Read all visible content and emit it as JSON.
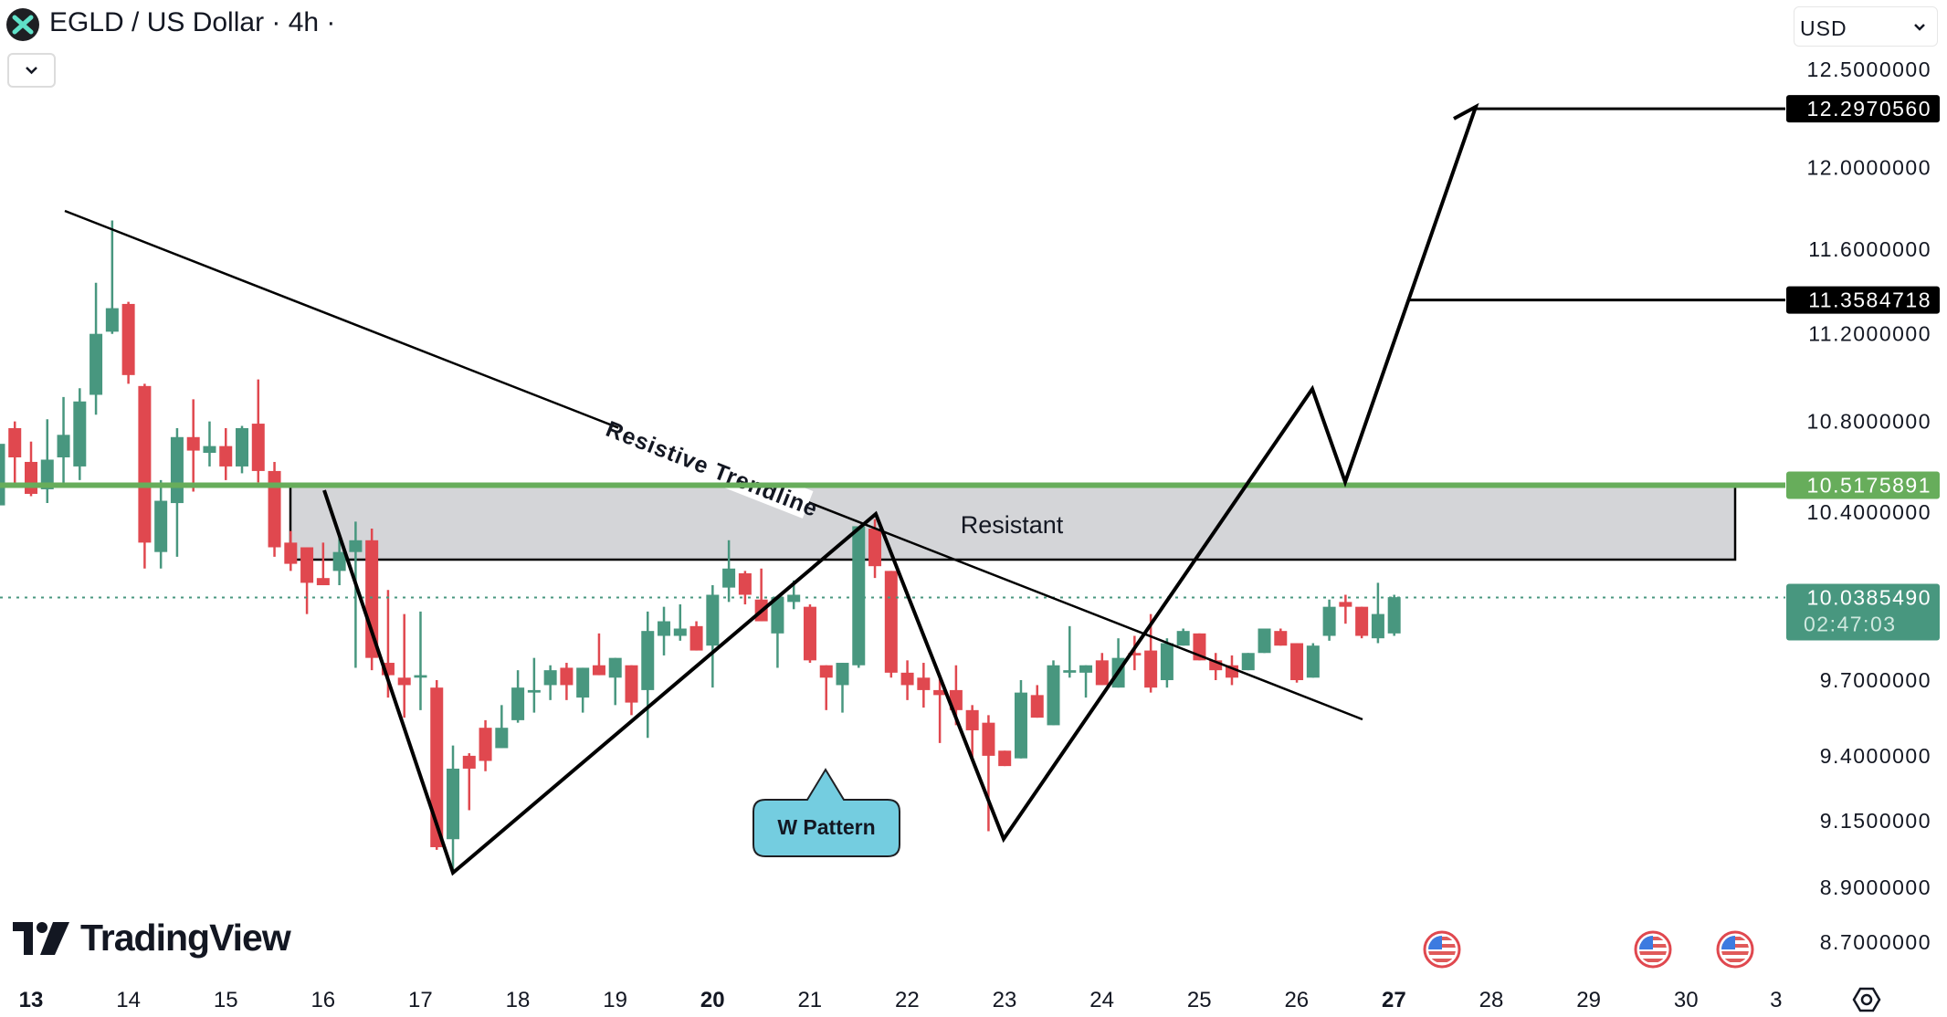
{
  "header": {
    "title": "EGLD / US Dollar · 4h ·",
    "symbol_icon": "multiversx-x-logo",
    "collapse_icon": "chevron-down-icon",
    "currency_select": "USD"
  },
  "branding": {
    "logo_text": "TradingView"
  },
  "annotations": {
    "trendline_label": "Resistive Trendline",
    "zone_label": "Resistant",
    "pattern_callout": "W Pattern"
  },
  "price_axis": {
    "ticks": [
      "12.5000000",
      "12.0000000",
      "11.6000000",
      "11.2000000",
      "10.8000000",
      "10.4000000",
      "9.7000000",
      "9.4000000",
      "9.1500000",
      "8.9000000",
      "8.7000000"
    ],
    "target_high": "12.2970560",
    "target_mid": "11.3584718",
    "resistance_level": "10.5175891",
    "last_price": "10.0385490",
    "countdown": "02:47:03"
  },
  "time_axis": {
    "labels": [
      "13",
      "14",
      "15",
      "16",
      "17",
      "18",
      "19",
      "20",
      "21",
      "22",
      "23",
      "24",
      "25",
      "26",
      "27",
      "28",
      "29",
      "30",
      "3"
    ],
    "bold": [
      "13",
      "20",
      "27"
    ]
  },
  "events": [
    "us-flag-icon",
    "us-flag-icon",
    "us-flag-icon"
  ],
  "colors": {
    "up": "#48977f",
    "down": "#e0484f",
    "resistance_line": "#67ad5b",
    "zone_fill": "#d4d5d8",
    "callout_fill": "#74cde0",
    "target_label_bg": "#000000",
    "last_price_bg": "#48977f"
  },
  "chart_data": {
    "type": "candlestick",
    "interval": "4h",
    "scale": "log",
    "ylim": [
      8.7,
      12.5
    ],
    "grid": false,
    "levels": {
      "resistance": 10.5175891,
      "target_1": 11.3584718,
      "target_2": 12.297056,
      "last": 10.038549
    },
    "ohlc": [
      [
        10.43,
        10.7,
        10.43,
        10.7
      ],
      [
        10.77,
        10.8,
        10.51,
        10.64
      ],
      [
        10.62,
        10.71,
        10.47,
        10.48
      ],
      [
        10.5,
        10.81,
        10.44,
        10.63
      ],
      [
        10.64,
        10.91,
        10.52,
        10.74
      ],
      [
        10.6,
        10.95,
        10.54,
        10.89
      ],
      [
        10.92,
        11.44,
        10.83,
        11.2
      ],
      [
        11.21,
        11.74,
        11.2,
        11.32
      ],
      [
        11.34,
        11.35,
        10.97,
        11.01
      ],
      [
        10.96,
        10.97,
        10.16,
        10.27
      ],
      [
        10.23,
        10.54,
        10.16,
        10.45
      ],
      [
        10.44,
        10.77,
        10.21,
        10.73
      ],
      [
        10.73,
        10.9,
        10.49,
        10.67
      ],
      [
        10.66,
        10.8,
        10.6,
        10.69
      ],
      [
        10.69,
        10.77,
        10.54,
        10.6
      ],
      [
        10.6,
        10.78,
        10.57,
        10.77
      ],
      [
        10.79,
        10.99,
        10.53,
        10.58
      ],
      [
        10.58,
        10.62,
        10.21,
        10.25
      ],
      [
        10.27,
        10.32,
        10.15,
        10.18
      ],
      [
        10.25,
        10.25,
        9.97,
        10.1
      ],
      [
        10.12,
        10.27,
        10.09,
        10.09
      ],
      [
        10.15,
        10.31,
        10.09,
        10.23
      ],
      [
        10.23,
        10.36,
        9.75,
        10.28
      ],
      [
        10.28,
        10.33,
        9.74,
        9.79
      ],
      [
        9.77,
        10.07,
        9.63,
        9.72
      ],
      [
        9.71,
        9.97,
        9.55,
        9.68
      ],
      [
        9.71,
        9.98,
        9.58,
        9.72
      ],
      [
        9.67,
        9.7,
        9.04,
        9.05
      ],
      [
        9.08,
        9.44,
        8.95,
        9.35
      ],
      [
        9.4,
        9.41,
        9.19,
        9.35
      ],
      [
        9.51,
        9.54,
        9.34,
        9.38
      ],
      [
        9.43,
        9.6,
        9.43,
        9.51
      ],
      [
        9.54,
        9.74,
        9.53,
        9.67
      ],
      [
        9.65,
        9.79,
        9.57,
        9.66
      ],
      [
        9.68,
        9.76,
        9.62,
        9.74
      ],
      [
        9.75,
        9.77,
        9.62,
        9.68
      ],
      [
        9.63,
        9.75,
        9.57,
        9.75
      ],
      [
        9.76,
        9.89,
        9.72,
        9.72
      ],
      [
        9.71,
        9.79,
        9.6,
        9.79
      ],
      [
        9.76,
        9.76,
        9.56,
        9.61
      ],
      [
        9.66,
        9.98,
        9.47,
        9.9
      ],
      [
        9.88,
        10.0,
        9.8,
        9.94
      ],
      [
        9.88,
        10.01,
        9.86,
        9.91
      ],
      [
        9.92,
        9.94,
        9.82,
        9.82
      ],
      [
        9.84,
        10.09,
        9.67,
        10.05
      ],
      [
        10.08,
        10.28,
        10.02,
        10.16
      ],
      [
        10.14,
        10.15,
        10.01,
        10.05
      ],
      [
        10.03,
        10.16,
        9.94,
        9.94
      ],
      [
        9.89,
        10.04,
        9.75,
        10.04
      ],
      [
        10.02,
        10.11,
        9.99,
        10.05
      ],
      [
        10.0,
        10.01,
        9.77,
        9.78
      ],
      [
        9.76,
        9.76,
        9.58,
        9.71
      ],
      [
        9.68,
        9.77,
        9.57,
        9.77
      ],
      [
        9.76,
        10.34,
        9.75,
        10.34
      ],
      [
        10.33,
        10.37,
        10.12,
        10.17
      ],
      [
        10.15,
        10.15,
        9.71,
        9.73
      ],
      [
        9.73,
        9.78,
        9.62,
        9.68
      ],
      [
        9.71,
        9.77,
        9.59,
        9.66
      ],
      [
        9.66,
        9.71,
        9.45,
        9.64
      ],
      [
        9.66,
        9.76,
        9.52,
        9.58
      ],
      [
        9.58,
        9.6,
        9.39,
        9.5
      ],
      [
        9.53,
        9.56,
        9.11,
        9.4
      ],
      [
        9.42,
        9.42,
        9.36,
        9.36
      ],
      [
        9.39,
        9.7,
        9.39,
        9.65
      ],
      [
        9.64,
        9.68,
        9.55,
        9.55
      ],
      [
        9.52,
        9.78,
        9.52,
        9.76
      ],
      [
        9.73,
        9.92,
        9.71,
        9.74
      ],
      [
        9.73,
        9.76,
        9.63,
        9.76
      ],
      [
        9.78,
        9.81,
        9.68,
        9.68
      ],
      [
        9.67,
        9.87,
        9.67,
        9.79
      ],
      [
        9.81,
        9.88,
        9.74,
        9.8
      ],
      [
        9.82,
        9.97,
        9.65,
        9.67
      ],
      [
        9.7,
        9.87,
        9.67,
        9.85
      ],
      [
        9.84,
        9.91,
        9.84,
        9.9
      ],
      [
        9.89,
        9.89,
        9.78,
        9.78
      ],
      [
        9.78,
        9.81,
        9.7,
        9.74
      ],
      [
        9.76,
        9.8,
        9.68,
        9.71
      ],
      [
        9.74,
        9.81,
        9.74,
        9.81
      ],
      [
        9.81,
        9.91,
        9.81,
        9.91
      ],
      [
        9.9,
        9.91,
        9.84,
        9.84
      ],
      [
        9.85,
        9.85,
        9.69,
        9.7
      ],
      [
        9.71,
        9.85,
        9.71,
        9.84
      ],
      [
        9.88,
        10.03,
        9.86,
        10.0
      ],
      [
        10.02,
        10.05,
        9.93,
        10.0
      ],
      [
        10.0,
        10.0,
        9.87,
        9.88
      ],
      [
        9.87,
        10.1,
        9.85,
        9.97
      ],
      [
        9.89,
        10.05,
        9.88,
        10.04
      ]
    ]
  }
}
